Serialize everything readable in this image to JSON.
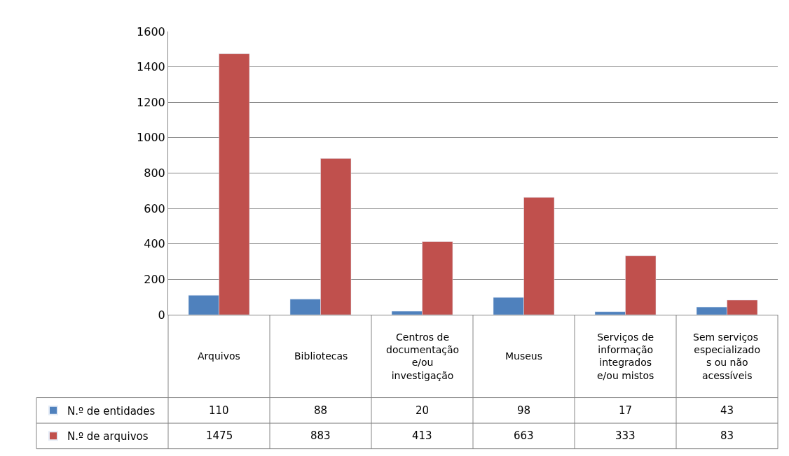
{
  "chart_data": {
    "type": "bar",
    "categories": [
      "Arquivos",
      "Bibliotecas",
      "Centros de documentação e/ou investigação",
      "Museus",
      "Serviços de informação integrados e/ou mistos",
      "Sem serviços especializados ou não acessíveis"
    ],
    "series": [
      {
        "name": "N.º de entidades",
        "color": "#4f81bd",
        "values": [
          110,
          88,
          20,
          98,
          17,
          43
        ]
      },
      {
        "name": "N.º de arquivos",
        "color": "#c0504d",
        "values": [
          1475,
          883,
          413,
          663,
          333,
          83
        ]
      }
    ],
    "ylim": [
      0,
      1600
    ],
    "yticks": [
      0,
      200,
      400,
      600,
      800,
      1000,
      1200,
      1400,
      1600
    ],
    "grid": "y",
    "data_labels": true,
    "legend": "bottom left"
  }
}
